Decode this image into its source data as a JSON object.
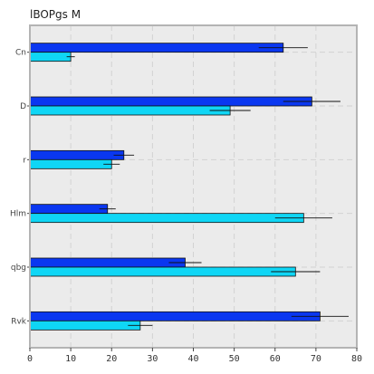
{
  "chart_data": {
    "type": "bar",
    "orientation": "horizontal",
    "title": "lBOPgs  M",
    "xlabel": "",
    "ylabel": "",
    "xlim": [
      0,
      80
    ],
    "xticks": [
      0,
      10,
      20,
      30,
      40,
      50,
      60,
      70,
      80
    ],
    "categories": [
      "Cn",
      "D",
      "r",
      "Hlm",
      "qbg",
      "Rvk"
    ],
    "series": [
      {
        "color": "#0a37f0",
        "values": [
          62,
          69,
          23,
          19,
          38,
          71
        ],
        "errors": [
          6,
          7,
          2.5,
          2,
          4,
          7
        ]
      },
      {
        "color": "#0fd6f5",
        "values": [
          10,
          49,
          20,
          67,
          65,
          27
        ],
        "errors": [
          1,
          5,
          2,
          7,
          6,
          3
        ]
      }
    ],
    "grid": true,
    "legend": "none"
  }
}
